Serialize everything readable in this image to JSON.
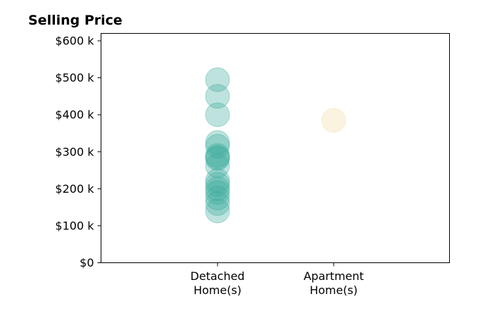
{
  "chart_data": {
    "type": "scatter",
    "title": "Selling Price",
    "xlabel": "",
    "ylabel": "",
    "categories": [
      [
        "Detached",
        "Home(s)"
      ],
      [
        "Apartment",
        "Home(s)"
      ]
    ],
    "x_ticks_count": 2,
    "ylim": [
      0,
      620000
    ],
    "y_ticks": [
      {
        "value": 0,
        "label": "$0"
      },
      {
        "value": 100000,
        "label": "$100 k"
      },
      {
        "value": 200000,
        "label": "$200 k"
      },
      {
        "value": 300000,
        "label": "$300 k"
      },
      {
        "value": 400000,
        "label": "$400 k"
      },
      {
        "value": 500000,
        "label": "$500 k"
      },
      {
        "value": 600000,
        "label": "$600 k"
      }
    ],
    "grid": false,
    "legend": "none",
    "series": [
      {
        "category": "Detached Home(s)",
        "color": "#3aa99a",
        "values": [
          495000,
          450000,
          400000,
          325000,
          315000,
          290000,
          285000,
          282000,
          262000,
          222000,
          212000,
          200000,
          190000,
          175000,
          160000,
          140000
        ]
      },
      {
        "category": "Apartment Home(s)",
        "color": "#f0dca0",
        "values": [
          385000
        ]
      }
    ]
  }
}
